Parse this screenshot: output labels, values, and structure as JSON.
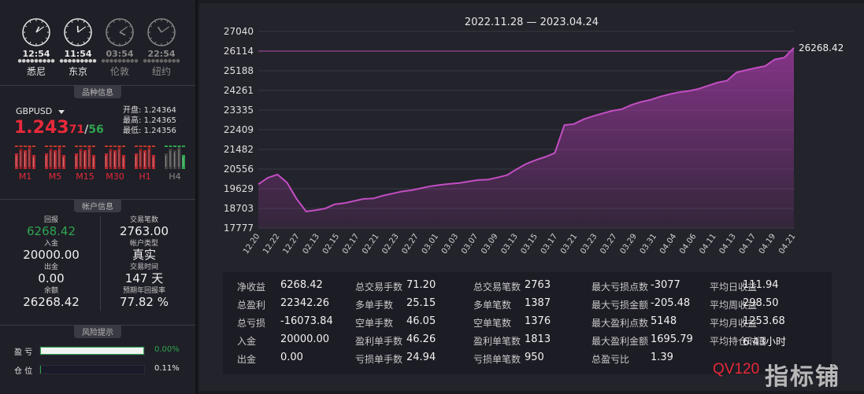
{
  "clocks": [
    {
      "time": "12:54",
      "city": "悉尼",
      "active": true,
      "h": 0.9,
      "m": 9
    },
    {
      "time": "11:54",
      "city": "东京",
      "active": true,
      "h": 11.9,
      "m": 9
    },
    {
      "time": "03:54",
      "city": "伦敦",
      "active": false,
      "h": 3.9,
      "m": 9
    },
    {
      "time": "22:54",
      "city": "纽约",
      "active": false,
      "h": 10.9,
      "m": 9
    }
  ],
  "sections": {
    "product": "品种信息",
    "account": "帐户信息",
    "risk": "风险提示"
  },
  "symbol": {
    "name": "GBPUSD",
    "price_big": "1.243",
    "price_mid": "71",
    "slash": "/",
    "ask": "56",
    "open_label": "开盘:",
    "open": "1.24364",
    "high_label": "最高:",
    "high": "1.24365",
    "low_label": "最低:",
    "low": "1.24356"
  },
  "timeframes": [
    {
      "label": "M1",
      "active": true
    },
    {
      "label": "M5",
      "active": true
    },
    {
      "label": "M15",
      "active": true
    },
    {
      "label": "M30",
      "active": true
    },
    {
      "label": "H1",
      "active": true
    },
    {
      "label": "H4",
      "active": false
    }
  ],
  "account": {
    "return_k": "回报",
    "return_v": "6268.42",
    "trades_k": "交易笔数",
    "trades_v": "2763.00",
    "deposit_k": "入金",
    "deposit_v": "20000.00",
    "acct_type_k": "帐户类型",
    "acct_type_v": "真实",
    "withdraw_k": "出金",
    "withdraw_v": "0.00",
    "time_k": "交易时间",
    "time_v": "147 天",
    "balance_k": "余额",
    "balance_v": "26268.42",
    "annual_k": "预期年回报率",
    "annual_v": "77.82 %"
  },
  "risk": {
    "pl_label": "盈 亏",
    "pl_value": "0.00%",
    "pl_fill": 1.0,
    "pos_label": "仓 位",
    "pos_value": "0.11%",
    "pos_fill": 0.0011
  },
  "chart_data": {
    "type": "area",
    "title": "2022.11.28 — 2023.04.24",
    "y_ticks": [
      "27040",
      "26114",
      "25188",
      "24261",
      "23335",
      "22409",
      "21482",
      "20556",
      "19629",
      "18703",
      "17777"
    ],
    "ylim": [
      17777,
      27040
    ],
    "x_ticks": [
      "12.20",
      "12.22",
      "12.27",
      "02.13",
      "02.15",
      "02.17",
      "02.21",
      "02.23",
      "02.27",
      "03.01",
      "03.03",
      "03.07",
      "03.09",
      "03.13",
      "03.15",
      "03.17",
      "03.21",
      "03.23",
      "03.27",
      "03.29",
      "03.31",
      "04.04",
      "04.06",
      "04.11",
      "04.13",
      "04.17",
      "04.19",
      "04.21"
    ],
    "reference_line": 26114,
    "last_label": "26268.42",
    "color": "#a53aa6",
    "values": [
      19840,
      20150,
      20300,
      19920,
      19150,
      18560,
      18620,
      18700,
      18900,
      18950,
      19050,
      19150,
      19170,
      19300,
      19400,
      19500,
      19560,
      19650,
      19750,
      19810,
      19860,
      19900,
      19970,
      20040,
      20060,
      20160,
      20270,
      20550,
      20800,
      20980,
      21130,
      21310,
      22630,
      22680,
      22900,
      23050,
      23180,
      23300,
      23380,
      23580,
      23720,
      23820,
      23970,
      24080,
      24180,
      24240,
      24330,
      24480,
      24630,
      24720,
      25110,
      25220,
      25320,
      25410,
      25720,
      25810,
      26268.42
    ]
  },
  "stats": [
    [
      {
        "k": "净收益",
        "v": "6268.42"
      },
      {
        "k": "总盈利",
        "v": "22342.26"
      },
      {
        "k": "总亏损",
        "v": "-16073.84"
      },
      {
        "k": "入金",
        "v": "20000.00"
      },
      {
        "k": "出金",
        "v": "0.00"
      }
    ],
    [
      {
        "k": "总交易手数",
        "v": "71.20"
      },
      {
        "k": "多单手数",
        "v": "25.15"
      },
      {
        "k": "空单手数",
        "v": "46.05"
      },
      {
        "k": "盈利单手数",
        "v": "46.26"
      },
      {
        "k": "亏损单手数",
        "v": "24.94"
      }
    ],
    [
      {
        "k": "总交易笔数",
        "v": "2763"
      },
      {
        "k": "多单笔数",
        "v": "1387"
      },
      {
        "k": "空单笔数",
        "v": "1376"
      },
      {
        "k": "盈利单笔数",
        "v": "1813"
      },
      {
        "k": "亏损单笔数",
        "v": "950"
      }
    ],
    [
      {
        "k": "最大亏损点数",
        "v": "-3077"
      },
      {
        "k": "最大亏损金额",
        "v": "-205.48"
      },
      {
        "k": "最大盈利点数",
        "v": "5148"
      },
      {
        "k": "最大盈利金额",
        "v": "1695.79"
      },
      {
        "k": "总盈亏比",
        "v": "1.39"
      }
    ],
    [
      {
        "k": "平均日收益",
        "v": "111.94"
      },
      {
        "k": "平均周收益",
        "v": "298.50"
      },
      {
        "k": "平均月收益",
        "v": "1253.68"
      },
      {
        "k": "平均持仓时间",
        "v": "6.43小时"
      }
    ]
  ],
  "watermark": {
    "code": "QV120",
    "brand": "指标铺"
  }
}
